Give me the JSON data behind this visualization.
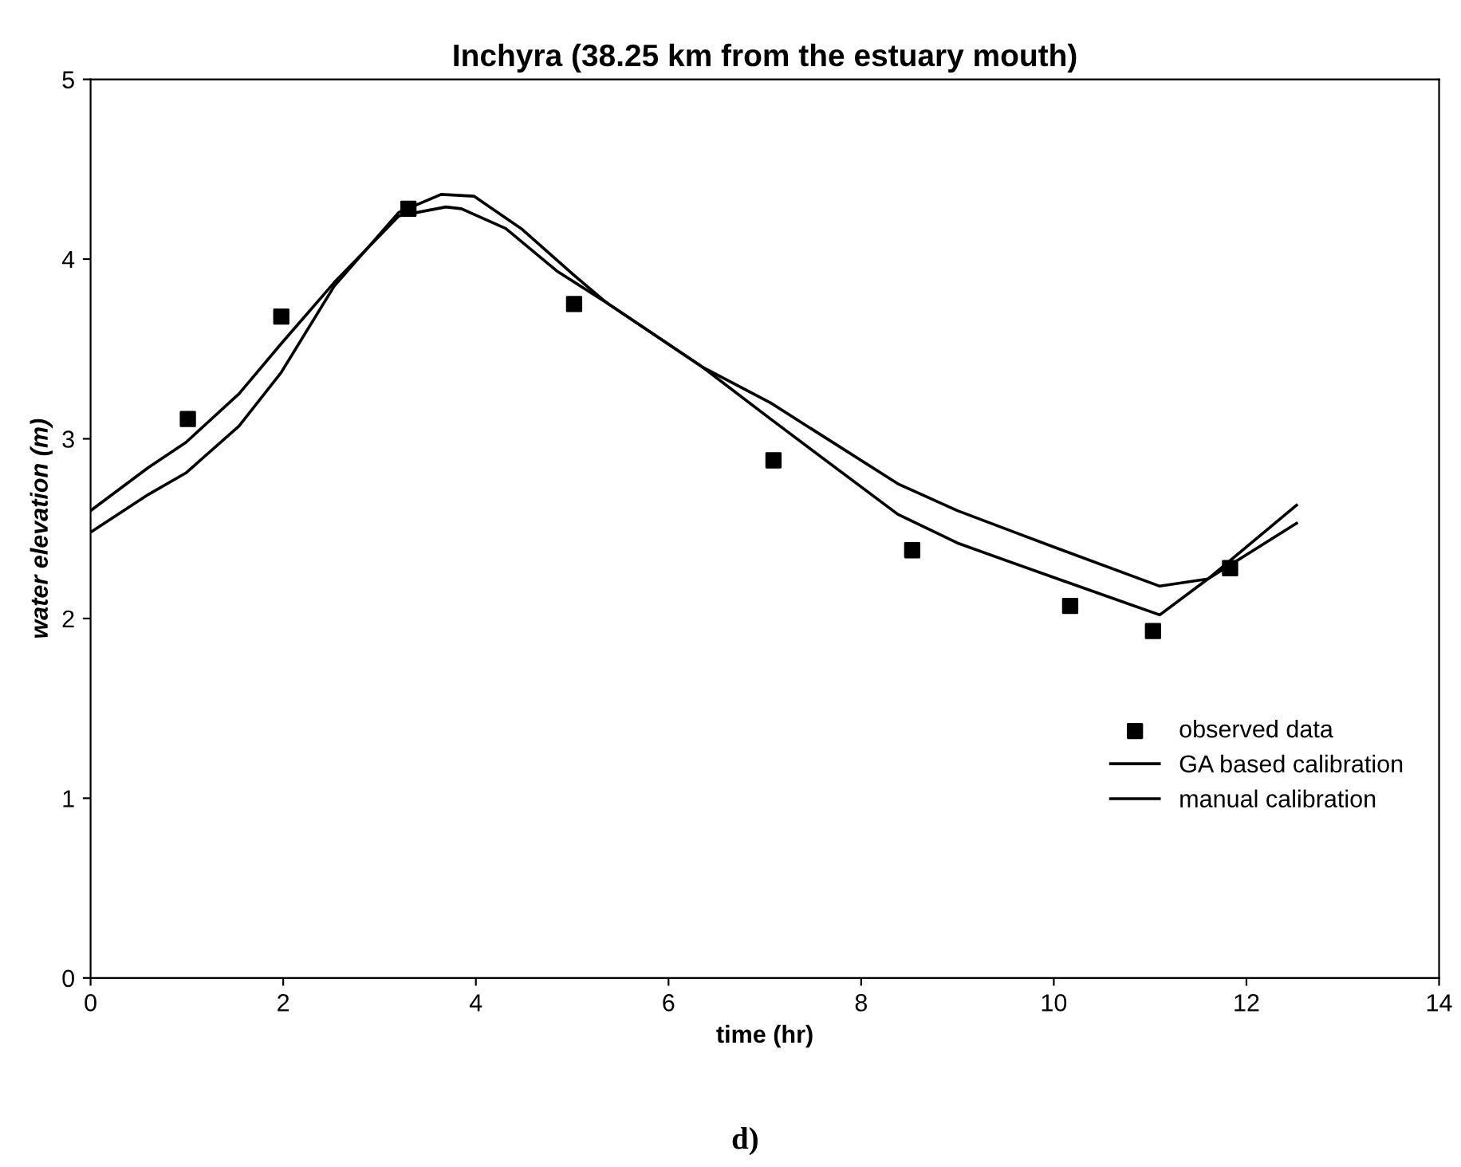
{
  "chart_data": {
    "type": "line",
    "title": "Inchyra (38.25 km from the estuary mouth)",
    "xlabel": "time (hr)",
    "ylabel": "water elevation (m)",
    "annotations": [
      "d)"
    ],
    "xlim": [
      0,
      14
    ],
    "xticks": [
      0,
      2,
      4,
      6,
      8,
      10,
      12,
      14
    ],
    "ylim": [
      0,
      5
    ],
    "yticks": [
      0,
      1,
      2,
      3,
      4,
      5
    ],
    "grid": false,
    "legend": "bottom right",
    "series": [
      {
        "name": "observed data",
        "type": "scatter",
        "marker": "square",
        "color": "#000000",
        "x": [
          1.01,
          1.98,
          3.3,
          5.02,
          7.09,
          8.53,
          10.17,
          11.03,
          11.83
        ],
        "values": [
          3.11,
          3.68,
          4.28,
          3.75,
          2.88,
          2.38,
          2.07,
          1.93,
          2.28
        ]
      },
      {
        "name": "GA based calibration",
        "marker": "none",
        "color": "#000000",
        "x": [
          0,
          0.6,
          0.99,
          1.54,
          1.98,
          2.53,
          3.2,
          3.64,
          3.98,
          4.47,
          5.02,
          5.35,
          6.35,
          7.06,
          8.38,
          9.0,
          9.99,
          11.1,
          11.6,
          12.52
        ],
        "values": [
          2.48,
          2.69,
          2.81,
          3.07,
          3.37,
          3.85,
          4.26,
          4.36,
          4.35,
          4.17,
          3.91,
          3.76,
          3.4,
          3.11,
          2.58,
          2.42,
          2.23,
          2.02,
          2.22,
          2.63
        ]
      },
      {
        "name": "manual calibration",
        "marker": "none",
        "color": "#000000",
        "x": [
          0,
          0.6,
          0.99,
          1.54,
          1.98,
          2.53,
          3.2,
          3.69,
          3.85,
          4.31,
          4.85,
          5.35,
          6.35,
          7.06,
          8.38,
          9.0,
          9.99,
          11.1,
          11.6,
          12.52
        ],
        "values": [
          2.6,
          2.84,
          2.98,
          3.25,
          3.53,
          3.87,
          4.24,
          4.29,
          4.28,
          4.17,
          3.93,
          3.76,
          3.4,
          3.2,
          2.75,
          2.6,
          2.4,
          2.18,
          2.22,
          2.53
        ]
      }
    ]
  }
}
